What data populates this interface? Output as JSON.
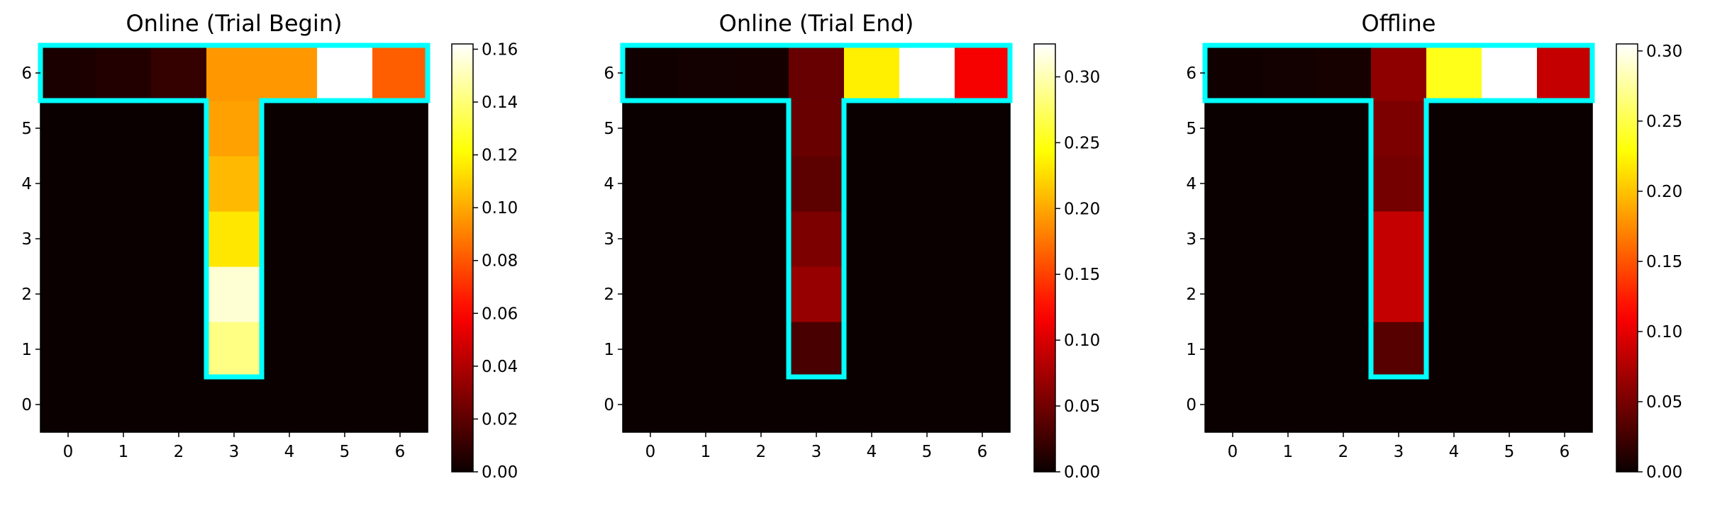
{
  "chart_data": [
    {
      "type": "heatmap",
      "title": "Online (Trial Begin)",
      "x_ticks": [
        "0",
        "1",
        "2",
        "3",
        "4",
        "5",
        "6"
      ],
      "y_ticks": [
        "0",
        "1",
        "2",
        "3",
        "4",
        "5",
        "6"
      ],
      "xlim": [
        -0.5,
        6.5
      ],
      "ylim": [
        -0.5,
        6.5
      ],
      "grid": false,
      "colormap": "hot",
      "colorbar": {
        "min": 0,
        "max": 0.162,
        "ticks": [
          "0.00",
          "0.02",
          "0.04",
          "0.06",
          "0.08",
          "0.10",
          "0.12",
          "0.14",
          "0.16"
        ]
      },
      "values": [
        [
          0,
          0,
          0,
          0,
          0,
          0,
          0
        ],
        [
          0,
          0,
          0,
          0.142,
          0,
          0,
          0
        ],
        [
          0,
          0,
          0,
          0.155,
          0,
          0,
          0
        ],
        [
          0,
          0,
          0,
          0.115,
          0,
          0,
          0
        ],
        [
          0,
          0,
          0,
          0.104,
          0,
          0,
          0
        ],
        [
          0,
          0,
          0,
          0.098,
          0,
          0,
          0
        ],
        [
          0.004,
          0.006,
          0.01,
          0.096,
          0.096,
          0.162,
          0.082
        ]
      ],
      "outline_color": "#00ffff"
    },
    {
      "type": "heatmap",
      "title": "Online (Trial End)",
      "x_ticks": [
        "0",
        "1",
        "2",
        "3",
        "4",
        "5",
        "6"
      ],
      "y_ticks": [
        "0",
        "1",
        "2",
        "3",
        "4",
        "5",
        "6"
      ],
      "xlim": [
        -0.5,
        6.5
      ],
      "ylim": [
        -0.5,
        6.5
      ],
      "grid": false,
      "colormap": "hot",
      "colorbar": {
        "min": 0,
        "max": 0.325,
        "ticks": [
          "0.00",
          "0.05",
          "0.10",
          "0.15",
          "0.20",
          "0.25",
          "0.30"
        ]
      },
      "values": [
        [
          0,
          0,
          0,
          0,
          0,
          0,
          0
        ],
        [
          0,
          0,
          0,
          0.03,
          0,
          0,
          0
        ],
        [
          0,
          0,
          0,
          0.068,
          0,
          0,
          0
        ],
        [
          0,
          0,
          0,
          0.055,
          0,
          0,
          0
        ],
        [
          0,
          0,
          0,
          0.04,
          0,
          0,
          0
        ],
        [
          0,
          0,
          0,
          0.046,
          0,
          0,
          0
        ],
        [
          0.003,
          0.004,
          0.005,
          0.045,
          0.235,
          0.325,
          0.115
        ]
      ],
      "outline_color": "#00ffff"
    },
    {
      "type": "heatmap",
      "title": "Offline",
      "x_ticks": [
        "0",
        "1",
        "2",
        "3",
        "4",
        "5",
        "6"
      ],
      "y_ticks": [
        "0",
        "1",
        "2",
        "3",
        "4",
        "5",
        "6"
      ],
      "xlim": [
        -0.5,
        6.5
      ],
      "ylim": [
        -0.5,
        6.5
      ],
      "grid": false,
      "colormap": "hot",
      "colorbar": {
        "min": 0,
        "max": 0.305,
        "ticks": [
          "0.00",
          "0.05",
          "0.10",
          "0.15",
          "0.20",
          "0.25",
          "0.30"
        ]
      },
      "values": [
        [
          0,
          0,
          0,
          0,
          0,
          0,
          0
        ],
        [
          0,
          0,
          0,
          0.035,
          0,
          0,
          0
        ],
        [
          0,
          0,
          0,
          0.085,
          0,
          0,
          0
        ],
        [
          0,
          0,
          0,
          0.085,
          0,
          0,
          0
        ],
        [
          0,
          0,
          0,
          0.048,
          0,
          0,
          0
        ],
        [
          0,
          0,
          0,
          0.052,
          0,
          0,
          0
        ],
        [
          0.003,
          0.004,
          0.005,
          0.06,
          0.235,
          0.305,
          0.085
        ]
      ],
      "outline_color": "#00ffff"
    }
  ]
}
